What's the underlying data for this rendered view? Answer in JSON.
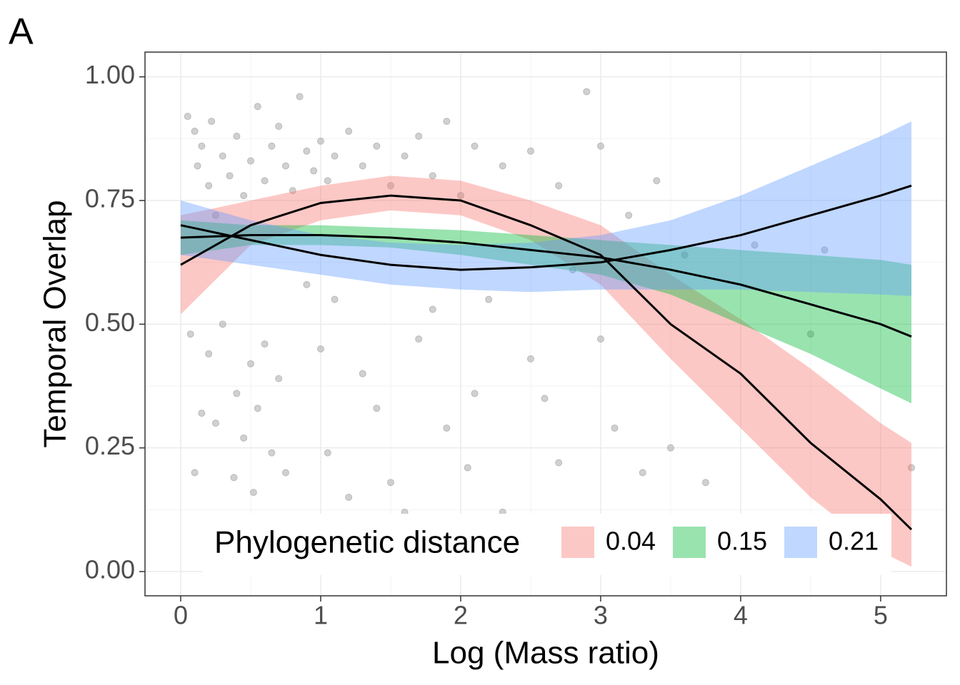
{
  "chart_data": {
    "type": "ribbon-line",
    "panel_label": "A",
    "xlabel": "Log (Mass ratio)",
    "ylabel": "Temporal Overlap",
    "legend_title": "Phylogenetic distance",
    "legend_position": "bottom",
    "grid": true,
    "xlim": [
      -0.255,
      5.47
    ],
    "ylim": [
      -0.049,
      1.05
    ],
    "xticks": [
      0,
      1,
      2,
      3,
      4,
      5
    ],
    "yticks": [
      {
        "value": 0,
        "label": "0.00"
      },
      {
        "value": 0.25,
        "label": "0.25"
      },
      {
        "value": 0.5,
        "label": "0.50"
      },
      {
        "value": 0.75,
        "label": "0.75"
      },
      {
        "value": 1,
        "label": "1.00"
      }
    ],
    "x": [
      0,
      0.5,
      1,
      1.5,
      2,
      2.5,
      3,
      3.5,
      4,
      4.5,
      5,
      5.22
    ],
    "series": [
      {
        "name": "0.04",
        "color": "#F8766D",
        "values": [
          0.62,
          0.7,
          0.745,
          0.76,
          0.75,
          0.7,
          0.64,
          0.5,
          0.4,
          0.26,
          0.146,
          0.085
        ],
        "lower": [
          0.52,
          0.66,
          0.71,
          0.73,
          0.72,
          0.67,
          0.58,
          0.43,
          0.29,
          0.15,
          0.04,
          0.01
        ],
        "upper": [
          0.72,
          0.75,
          0.78,
          0.8,
          0.79,
          0.75,
          0.7,
          0.6,
          0.51,
          0.41,
          0.3,
          0.26
        ]
      },
      {
        "name": "0.15",
        "color": "#00BA38",
        "values": [
          0.675,
          0.68,
          0.68,
          0.675,
          0.665,
          0.65,
          0.635,
          0.61,
          0.58,
          0.54,
          0.5,
          0.475
        ],
        "lower": [
          0.64,
          0.66,
          0.66,
          0.655,
          0.64,
          0.62,
          0.6,
          0.56,
          0.5,
          0.44,
          0.37,
          0.34
        ],
        "upper": [
          0.71,
          0.7,
          0.7,
          0.695,
          0.69,
          0.68,
          0.67,
          0.66,
          0.65,
          0.64,
          0.63,
          0.62
        ]
      },
      {
        "name": "0.21",
        "color": "#619CFF",
        "values": [
          0.7,
          0.67,
          0.64,
          0.62,
          0.61,
          0.615,
          0.625,
          0.65,
          0.68,
          0.72,
          0.76,
          0.78
        ],
        "lower": [
          0.64,
          0.62,
          0.6,
          0.58,
          0.57,
          0.565,
          0.57,
          0.57,
          0.57,
          0.565,
          0.56,
          0.557
        ],
        "upper": [
          0.75,
          0.71,
          0.68,
          0.665,
          0.66,
          0.665,
          0.68,
          0.71,
          0.76,
          0.82,
          0.88,
          0.91
        ]
      }
    ],
    "points": {
      "color": "#b0b0b0",
      "x": [
        0.05,
        0.1,
        0.12,
        0.15,
        0.2,
        0.22,
        0.25,
        0.3,
        0.35,
        0.4,
        0.45,
        0.5,
        0.55,
        0.6,
        0.65,
        0.7,
        0.75,
        0.8,
        0.85,
        0.9,
        0.95,
        1.0,
        1.05,
        1.1,
        1.2,
        1.3,
        1.4,
        1.5,
        1.6,
        1.7,
        1.8,
        1.9,
        2.0,
        2.1,
        2.3,
        2.5,
        2.7,
        2.9,
        3.0,
        3.2,
        3.4,
        3.6,
        4.1,
        4.6,
        0.07,
        0.1,
        0.15,
        0.2,
        0.25,
        0.3,
        0.38,
        0.4,
        0.45,
        0.5,
        0.52,
        0.55,
        0.6,
        0.65,
        0.7,
        0.75,
        0.9,
        1.0,
        1.05,
        1.1,
        1.2,
        1.3,
        1.4,
        1.5,
        1.6,
        1.7,
        1.8,
        1.9,
        2.05,
        2.1,
        2.2,
        2.3,
        2.5,
        2.6,
        2.7,
        2.8,
        3.0,
        3.1,
        3.3,
        3.5,
        3.75,
        4.5,
        5.22
      ],
      "y": [
        0.92,
        0.89,
        0.82,
        0.86,
        0.78,
        0.91,
        0.72,
        0.84,
        0.8,
        0.88,
        0.76,
        0.83,
        0.94,
        0.79,
        0.86,
        0.9,
        0.82,
        0.77,
        0.96,
        0.85,
        0.81,
        0.87,
        0.79,
        0.84,
        0.89,
        0.82,
        0.86,
        0.78,
        0.84,
        0.88,
        0.8,
        0.91,
        0.76,
        0.86,
        0.82,
        0.85,
        0.78,
        0.97,
        0.86,
        0.72,
        0.79,
        0.64,
        0.66,
        0.65,
        0.48,
        0.2,
        0.32,
        0.44,
        0.3,
        0.5,
        0.19,
        0.36,
        0.27,
        0.42,
        0.16,
        0.33,
        0.46,
        0.24,
        0.39,
        0.2,
        0.58,
        0.45,
        0.24,
        0.55,
        0.15,
        0.4,
        0.33,
        0.18,
        0.12,
        0.47,
        0.53,
        0.29,
        0.21,
        0.36,
        0.55,
        0.12,
        0.43,
        0.35,
        0.22,
        0.61,
        0.47,
        0.29,
        0.2,
        0.25,
        0.18,
        0.48,
        0.21
      ]
    }
  }
}
